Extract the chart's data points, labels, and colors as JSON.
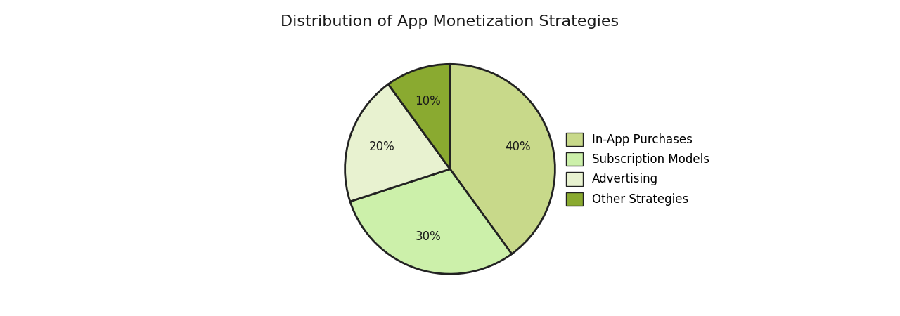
{
  "title": "Distribution of App Monetization Strategies",
  "slices": [
    {
      "label": "In-App Purchases",
      "value": 40,
      "color": "#c8d98a"
    },
    {
      "label": "Subscription Models",
      "value": 30,
      "color": "#ccf0aa"
    },
    {
      "label": "Advertising",
      "value": 20,
      "color": "#e8f2d0"
    },
    {
      "label": "Other Strategies",
      "value": 10,
      "color": "#8aaa30"
    }
  ],
  "edge_color": "#222222",
  "edge_width": 2.0,
  "title_fontsize": 16,
  "autopct_fontsize": 12,
  "legend_fontsize": 12,
  "startangle": 90,
  "figsize": [
    12.8,
    4.5
  ],
  "dpi": 100,
  "pctdistance": 0.68
}
